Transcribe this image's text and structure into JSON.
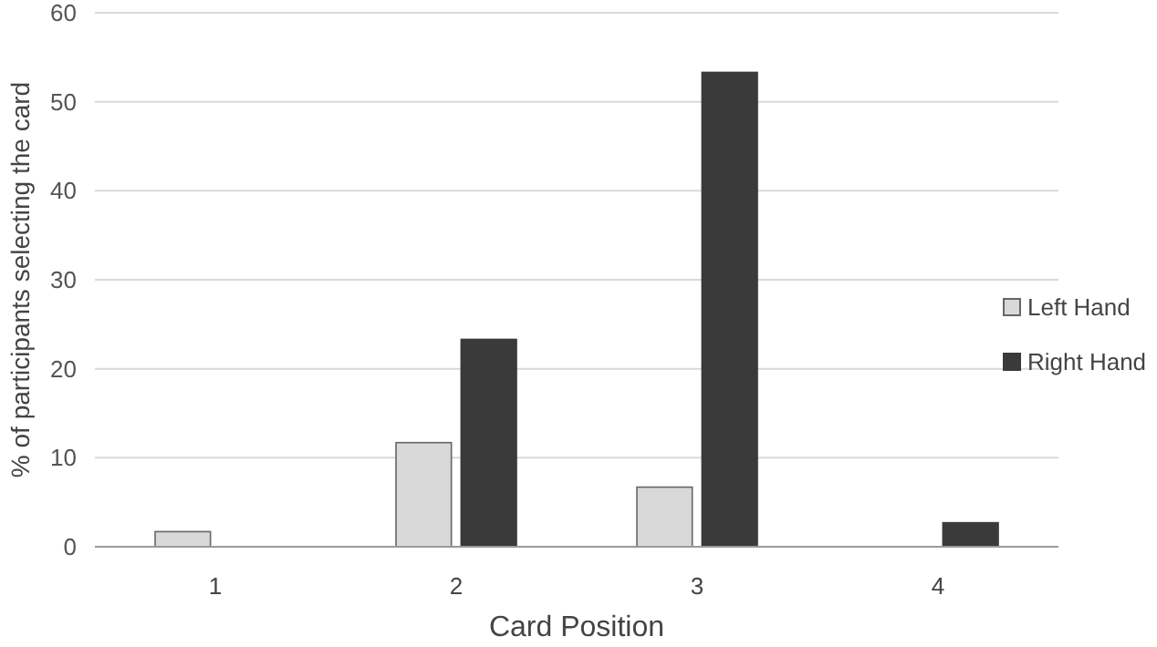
{
  "chart_data": {
    "type": "bar",
    "xlabel": "Card Position",
    "ylabel": "% of participants selecting the card",
    "categories": [
      "1",
      "2",
      "3",
      "4"
    ],
    "series": [
      {
        "name": "Left Hand",
        "color": "#d9d9d9",
        "values": [
          1.7,
          11.7,
          6.7,
          0
        ]
      },
      {
        "name": "Right Hand",
        "color": "#3a3a3a",
        "values": [
          0,
          23.3,
          53.3,
          2.7
        ]
      }
    ],
    "ylim": [
      0,
      60
    ],
    "yticks": [
      0,
      10,
      20,
      30,
      40,
      50,
      60
    ],
    "grid": "y",
    "legend": "right"
  }
}
